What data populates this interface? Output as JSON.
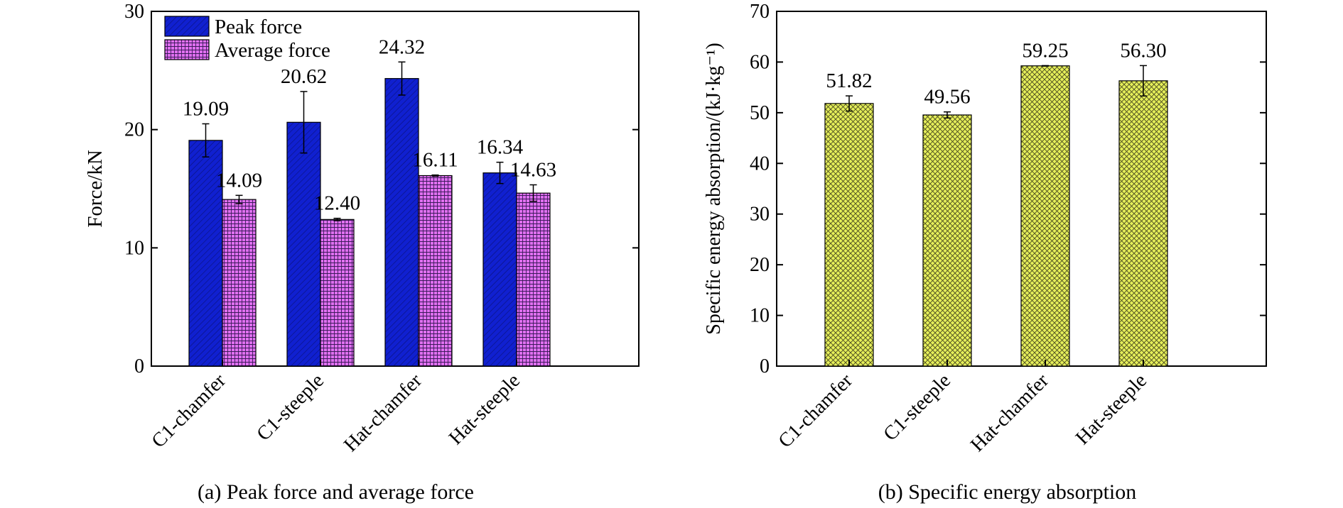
{
  "chart_data": [
    {
      "type": "bar",
      "caption": "(a) Peak force and average force",
      "categories": [
        "C1-chamfer",
        "C1-steeple",
        "Hat-chamfer",
        "Hat-steeple"
      ],
      "ylabel": "Force/kN",
      "xlabel": "",
      "ylim": [
        0,
        30
      ],
      "yticks": [
        0,
        10,
        20,
        30
      ],
      "legend_position": "top-left",
      "grid": false,
      "series": [
        {
          "name": "Peak force",
          "values": [
            19.09,
            20.62,
            24.32,
            16.34
          ],
          "labels": [
            "19.09",
            "20.62",
            "24.32",
            "16.34"
          ],
          "errors": [
            1.4,
            2.6,
            1.4,
            0.9
          ],
          "color": "#1020d0",
          "pattern": "diagonal-hatch"
        },
        {
          "name": "Average force",
          "values": [
            14.09,
            12.4,
            16.11,
            14.63
          ],
          "labels": [
            "14.09",
            "12.40",
            "16.11",
            "14.63"
          ],
          "errors": [
            0.35,
            0.1,
            0.05,
            0.7
          ],
          "color": "#e070f0",
          "pattern": "grid-hatch"
        }
      ]
    },
    {
      "type": "bar",
      "caption": "(b) Specific energy absorption",
      "categories": [
        "C1-chamfer",
        "C1-steeple",
        "Hat-chamfer",
        "Hat-steeple"
      ],
      "ylabel": "Specific energy absorption/(kJ·kg⁻¹)",
      "xlabel": "",
      "ylim": [
        0,
        70
      ],
      "yticks": [
        0,
        10,
        20,
        30,
        40,
        50,
        60,
        70
      ],
      "grid": false,
      "series": [
        {
          "values": [
            51.82,
            49.56,
            59.25,
            56.3
          ],
          "labels": [
            "51.82",
            "49.56",
            "59.25",
            "56.30"
          ],
          "errors": [
            1.5,
            0.6,
            0.05,
            3.0
          ],
          "color": "#e6f05a",
          "pattern": "crosshatch"
        }
      ]
    }
  ]
}
